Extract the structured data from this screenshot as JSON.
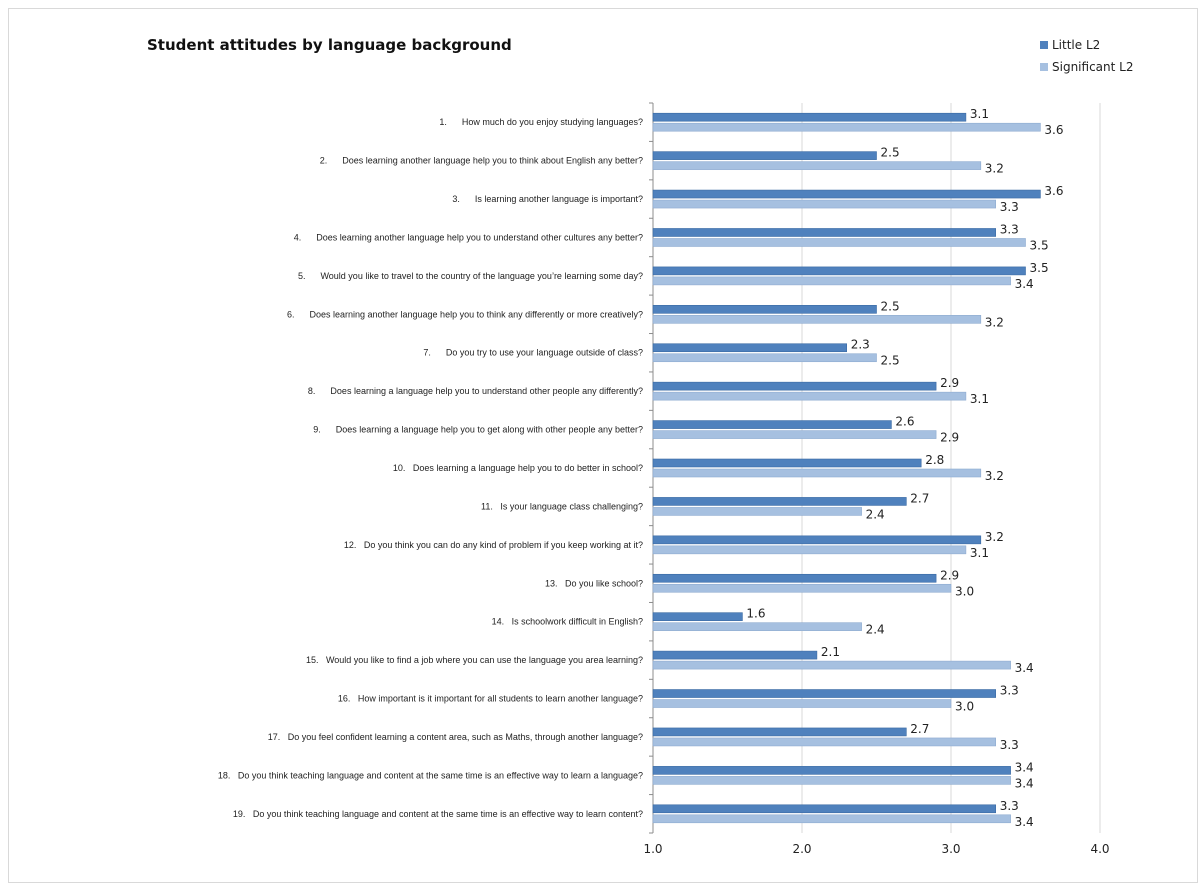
{
  "chart_data": {
    "type": "bar",
    "orientation": "horizontal",
    "title": "Student attitudes by language background",
    "xlim": [
      1.0,
      4.0
    ],
    "xticks": [
      "1.0",
      "2.0",
      "3.0",
      "4.0"
    ],
    "grid": true,
    "legend_position": "top-right",
    "categories": [
      "1.      How much do you enjoy studying languages?",
      "2.      Does learning another language help you to think about English any better?",
      "3.      Is learning another language is important?",
      "4.      Does learning another language help you to understand other cultures any better?",
      "5.      Would you like to travel to the country of the language you’re learning some day?",
      "6.      Does learning another language help you to think any differently or more creatively?",
      "7.      Do you try to use your language outside of class?",
      "8.      Does learning a language help you to understand other people any differently?",
      "9.      Does learning a language help you to get along with other people any better?",
      "10.   Does learning a language help you to do better in school?",
      "11.   Is your language class challenging?",
      "12.   Do you think you can do any kind of problem if you keep working at it?",
      "13.   Do you like school?",
      "14.   Is schoolwork difficult in English?",
      "15.   Would you like to find a job where you can use the language you area learning?",
      "16.   How important is it important for all students to learn another language?",
      "17.   Do you feel confident learning a content area, such as Maths, through another language?",
      "18.   Do you think teaching language and content at the same time is an effective way to learn a language?",
      "19.   Do you think teaching language and content at the same time is an effective way to learn content?"
    ],
    "series": [
      {
        "name": "Little L2",
        "color": "#4f81bd",
        "values": [
          3.1,
          2.5,
          3.6,
          3.3,
          3.5,
          2.5,
          2.3,
          2.9,
          2.6,
          2.8,
          2.7,
          3.2,
          2.9,
          1.6,
          2.1,
          3.3,
          2.7,
          3.4,
          3.3
        ]
      },
      {
        "name": "Significant L2",
        "color": "#a6c0e0",
        "values": [
          3.6,
          3.2,
          3.3,
          3.5,
          3.4,
          3.2,
          2.5,
          3.1,
          2.9,
          3.2,
          2.4,
          3.1,
          3.0,
          2.4,
          3.4,
          3.0,
          3.3,
          3.4,
          3.4
        ]
      }
    ]
  }
}
